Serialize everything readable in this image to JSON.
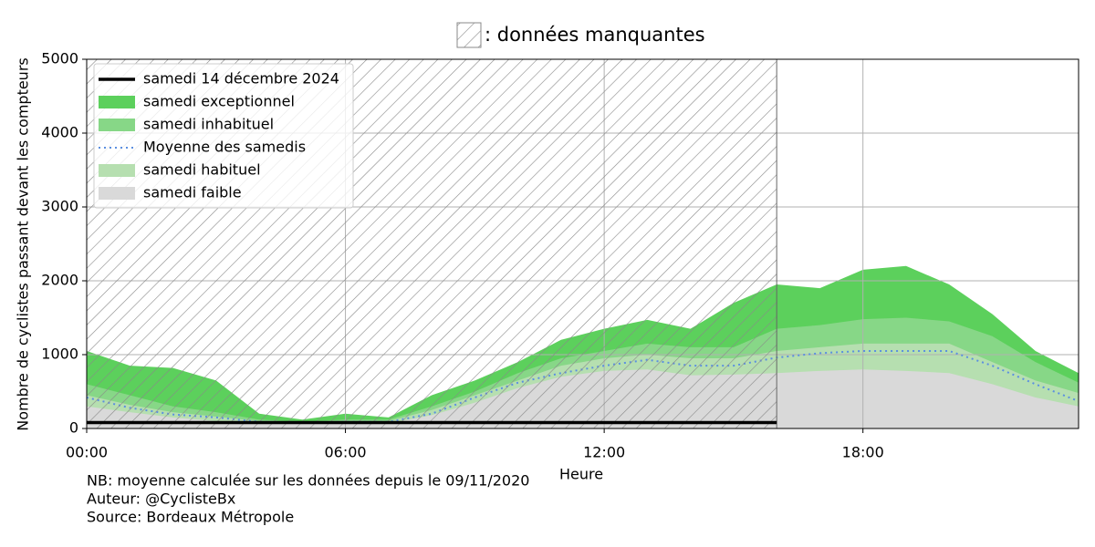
{
  "chart_data": {
    "type": "area",
    "missing_label": ": données manquantes",
    "missing_xlim": [
      0,
      16
    ],
    "xlabel": "Heure",
    "ylabel": "Nombre de cyclistes passant devant les compteurs",
    "notes": [
      "NB: moyenne calculée sur les données depuis le 09/11/2020",
      "Auteur: @CyclisteBx",
      "Source: Bordeaux Métropole"
    ],
    "x": [
      0,
      1,
      2,
      3,
      4,
      5,
      6,
      7,
      8,
      9,
      10,
      11,
      12,
      13,
      14,
      15,
      16,
      17,
      18,
      19,
      20,
      21,
      22,
      23
    ],
    "series": [
      {
        "name": "samedi 14 décembre 2024",
        "style": "line",
        "color": "#000000",
        "values": [
          80,
          80,
          80,
          80,
          80,
          80,
          80,
          80,
          80,
          80,
          80,
          80,
          80,
          80,
          80,
          80,
          80,
          null,
          null,
          null,
          null,
          null,
          null,
          null
        ]
      },
      {
        "name": "samedi exceptionnel",
        "style": "area",
        "color": "#5cd05c",
        "values": [
          1050,
          850,
          820,
          650,
          200,
          120,
          200,
          150,
          450,
          650,
          900,
          1200,
          1350,
          1470,
          1350,
          1700,
          1950,
          1900,
          2150,
          2200,
          1950,
          1550,
          1050,
          750
        ]
      },
      {
        "name": "samedi inhabituel",
        "style": "area",
        "color": "#87d787",
        "values": [
          600,
          450,
          300,
          220,
          120,
          90,
          120,
          120,
          300,
          500,
          750,
          950,
          1050,
          1150,
          1100,
          1100,
          1350,
          1400,
          1480,
          1500,
          1450,
          1250,
          900,
          620
        ]
      },
      {
        "name": "Moyenne des samedis",
        "style": "dotted",
        "color": "#5b8fe0",
        "values": [
          420,
          280,
          190,
          150,
          90,
          80,
          90,
          90,
          200,
          420,
          620,
          750,
          850,
          930,
          850,
          850,
          960,
          1020,
          1050,
          1050,
          1050,
          850,
          600,
          370
        ]
      },
      {
        "name": "samedi habituel",
        "style": "area",
        "color": "#b6dfb0",
        "values": [
          450,
          320,
          220,
          160,
          100,
          80,
          100,
          100,
          250,
          450,
          650,
          850,
          950,
          1000,
          950,
          950,
          1050,
          1100,
          1150,
          1150,
          1150,
          900,
          650,
          480
        ]
      },
      {
        "name": "samedi faible",
        "style": "area",
        "color": "#d9d9d9",
        "values": [
          300,
          220,
          150,
          100,
          70,
          60,
          70,
          70,
          180,
          350,
          550,
          700,
          780,
          800,
          720,
          730,
          750,
          780,
          800,
          780,
          750,
          600,
          420,
          300
        ]
      }
    ],
    "xlim": [
      0,
      23
    ],
    "xticks": [
      {
        "value": 0,
        "label": "00:00"
      },
      {
        "value": 6,
        "label": "06:00"
      },
      {
        "value": 12,
        "label": "12:00"
      },
      {
        "value": 18,
        "label": "18:00"
      }
    ],
    "ylim": [
      0,
      5000
    ],
    "yticks": [
      0,
      1000,
      2000,
      3000,
      4000,
      5000
    ],
    "grid": true,
    "legend": "upper left"
  }
}
